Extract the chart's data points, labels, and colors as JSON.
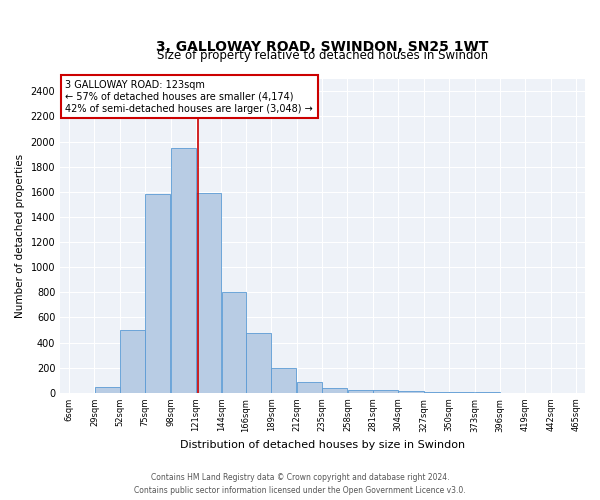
{
  "title1": "3, GALLOWAY ROAD, SWINDON, SN25 1WT",
  "title2": "Size of property relative to detached houses in Swindon",
  "xlabel": "Distribution of detached houses by size in Swindon",
  "ylabel": "Number of detached properties",
  "annotation_line1": "3 GALLOWAY ROAD: 123sqm",
  "annotation_line2": "← 57% of detached houses are smaller (4,174)",
  "annotation_line3": "42% of semi-detached houses are larger (3,048) →",
  "footer1": "Contains HM Land Registry data © Crown copyright and database right 2024.",
  "footer2": "Contains public sector information licensed under the Open Government Licence v3.0.",
  "property_size": 123,
  "bar_color": "#b8cce4",
  "bar_edge_color": "#5b9bd5",
  "annotation_box_color": "#cc0000",
  "vline_color": "#cc0000",
  "bg_color": "#eef2f8",
  "bin_edges": [
    6,
    29,
    52,
    75,
    98,
    121,
    144,
    166,
    189,
    212,
    235,
    258,
    281,
    304,
    327,
    350,
    373,
    396,
    419,
    442,
    465
  ],
  "bar_heights": [
    0,
    50,
    500,
    1580,
    1950,
    1590,
    800,
    480,
    200,
    90,
    40,
    25,
    20,
    15,
    10,
    5,
    3,
    2,
    1,
    1
  ],
  "ylim": [
    0,
    2500
  ],
  "yticks": [
    0,
    200,
    400,
    600,
    800,
    1000,
    1200,
    1400,
    1600,
    1800,
    2000,
    2200,
    2400
  ]
}
